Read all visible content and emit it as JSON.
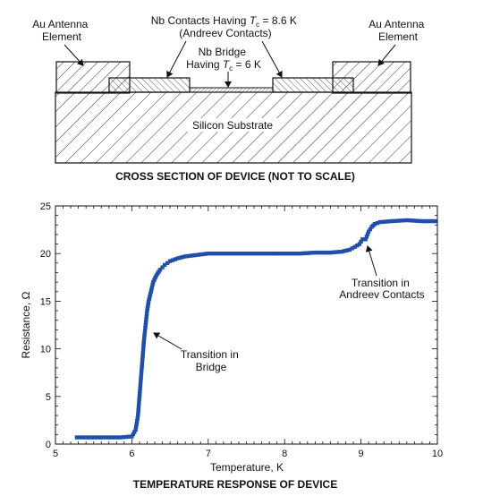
{
  "cross_section": {
    "label_au_left": [
      "Au Antenna",
      "Element"
    ],
    "label_au_right": [
      "Au Antenna",
      "Element"
    ],
    "label_nb_contacts": [
      "Nb Contacts Having T_c = 8.6 K",
      "(Andreev Contacts)"
    ],
    "label_nb_bridge": [
      "Nb Bridge",
      "Having T_c = 6 K"
    ],
    "label_substrate": "Silicon Substrate",
    "caption": "CROSS SECTION OF DEVICE (NOT TO SCALE)"
  },
  "plot": {
    "caption": "TEMPERATURE RESPONSE OF DEVICE",
    "annotation_bridge": [
      "Transition in",
      "Bridge"
    ],
    "annotation_andreev": [
      "Transition in",
      "Andreev Contacts"
    ]
  },
  "chart_data": {
    "type": "scatter",
    "title": "TEMPERATURE RESPONSE OF DEVICE",
    "xlabel": "Temperature, K",
    "ylabel": "Resistance, Ω",
    "xlim": [
      5,
      10
    ],
    "ylim": [
      0,
      25
    ],
    "xticks": [
      5,
      6,
      7,
      8,
      9,
      10
    ],
    "yticks": [
      0,
      5,
      10,
      15,
      20,
      25
    ],
    "series": [
      {
        "x": [
          5.28,
          5.4,
          5.55,
          5.7,
          5.85,
          6.0,
          6.05,
          6.08,
          6.1,
          6.12,
          6.14,
          6.16,
          6.18,
          6.2,
          6.22,
          6.25,
          6.28,
          6.32,
          6.37,
          6.43,
          6.5,
          6.6,
          6.7,
          6.8,
          6.9,
          7.0,
          7.2,
          7.4,
          7.6,
          7.8,
          8.0,
          8.2,
          8.4,
          8.6,
          8.75,
          8.85,
          8.92,
          8.98,
          9.02,
          9.06,
          9.1,
          9.14,
          9.18,
          9.25,
          9.4,
          9.6,
          9.8,
          9.97
        ],
        "y": [
          0.7,
          0.7,
          0.7,
          0.7,
          0.7,
          0.8,
          1.5,
          3.0,
          5.0,
          7.0,
          9.0,
          11.0,
          12.5,
          14.0,
          15.0,
          16.0,
          17.0,
          17.7,
          18.3,
          18.8,
          19.2,
          19.5,
          19.7,
          19.8,
          19.9,
          20.0,
          20.0,
          20.0,
          20.0,
          20.0,
          20.0,
          20.0,
          20.1,
          20.1,
          20.2,
          20.4,
          20.7,
          21.0,
          21.5,
          21.5,
          22.3,
          22.8,
          23.1,
          23.3,
          23.4,
          23.5,
          23.4,
          23.4
        ]
      }
    ]
  }
}
